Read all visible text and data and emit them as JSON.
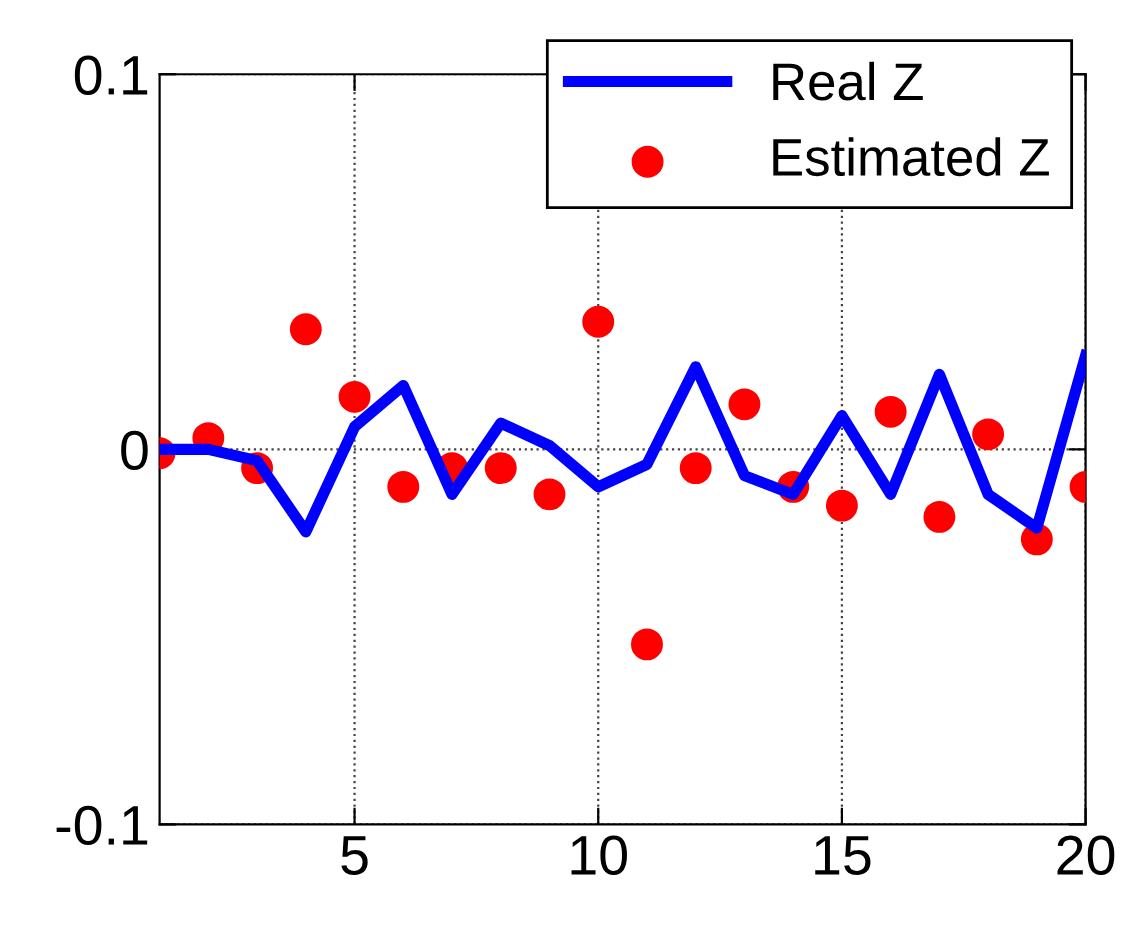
{
  "chart_data": {
    "type": "line",
    "x": [
      1,
      2,
      3,
      4,
      5,
      6,
      7,
      8,
      9,
      10,
      11,
      12,
      13,
      14,
      15,
      16,
      17,
      18,
      19,
      20
    ],
    "series": [
      {
        "name": "Real Z",
        "color": "#0000ff",
        "marker": "none",
        "line_style": "solid",
        "values": [
          0,
          0,
          -0.003,
          -0.022,
          0.006,
          0.017,
          -0.012,
          0.007,
          0.001,
          -0.01,
          -0.004,
          0.022,
          -0.007,
          -0.012,
          0.009,
          -0.012,
          0.02,
          -0.012,
          -0.021,
          0.025
        ]
      },
      {
        "name": "Estimated Z",
        "type": "scatter",
        "color": "#ff0000",
        "marker": "circle",
        "values": [
          -0.001,
          0.003,
          -0.005,
          0.032,
          0.014,
          -0.01,
          -0.005,
          -0.005,
          -0.012,
          0.034,
          -0.052,
          -0.005,
          0.012,
          -0.01,
          -0.015,
          0.01,
          -0.018,
          0.004,
          -0.024,
          -0.01
        ]
      }
    ],
    "xlim": [
      1,
      20
    ],
    "xticks": [
      5,
      10,
      15,
      20
    ],
    "ylim": [
      -0.1,
      0.1
    ],
    "yticks": [
      {
        "value": -0.1,
        "label": "-0.1"
      },
      {
        "value": 0,
        "label": "0"
      },
      {
        "value": 0.1,
        "label": "0.1"
      }
    ],
    "grid": true,
    "legend": "top right"
  }
}
